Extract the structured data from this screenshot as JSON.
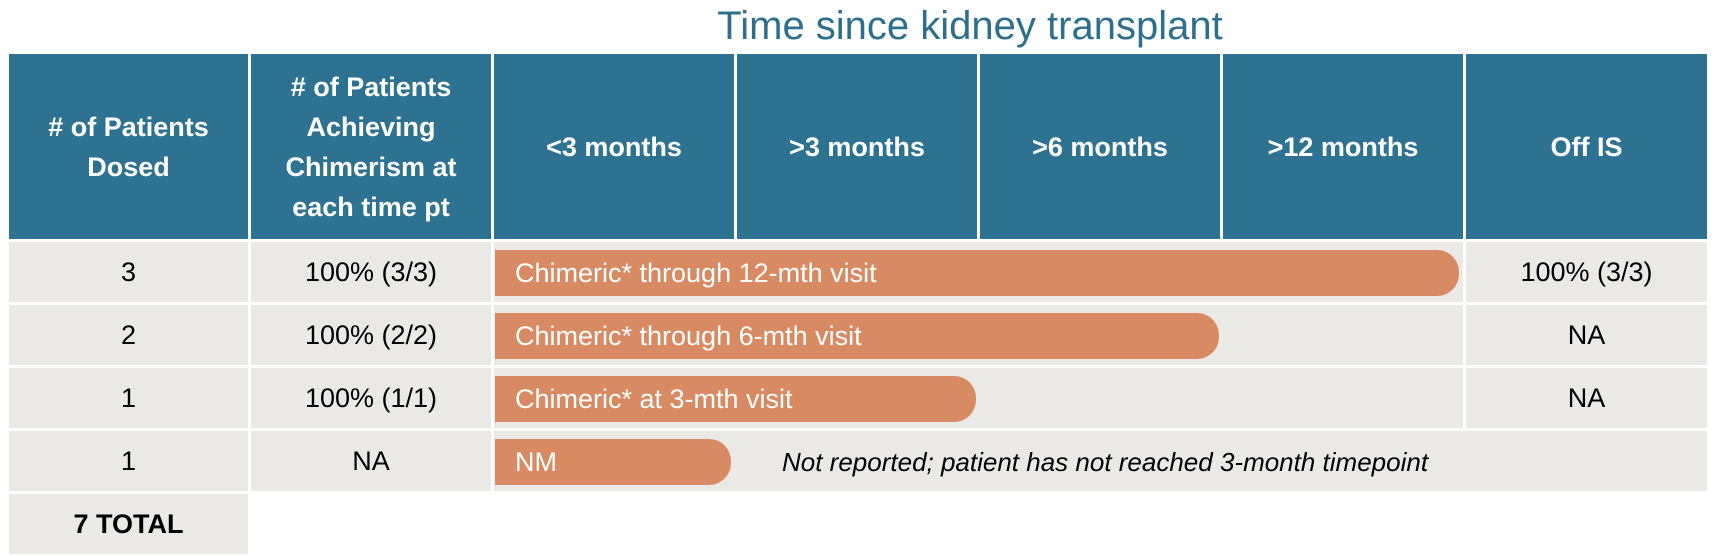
{
  "title": "Time since kidney transplant",
  "headers": {
    "dosed": "# of Patients Dosed",
    "achieving": "# of Patients Achieving Chimerism at each time pt",
    "lt3": "<3 months",
    "gt3": ">3 months",
    "gt6": ">6 months",
    "gt12": ">12 months",
    "off_is": "Off IS"
  },
  "rows": [
    {
      "dosed": "3",
      "achieving": "100% (3/3)",
      "bar": "Chimeric* through 12-mth visit",
      "off_is": "100% (3/3)"
    },
    {
      "dosed": "2",
      "achieving": "100% (2/2)",
      "bar": "Chimeric* through 6-mth visit",
      "off_is": "NA"
    },
    {
      "dosed": "1",
      "achieving": "100% (1/1)",
      "bar": "Chimeric* at 3-mth visit",
      "off_is": "NA"
    },
    {
      "dosed": "1",
      "achieving": "NA",
      "bar": "NM",
      "note": "Not reported; patient has not reached 3-month timepoint"
    }
  ],
  "total": "7 TOTAL",
  "colors": {
    "header": "#2e7291",
    "body": "#ebe9e6",
    "bar": "#d88a62",
    "title": "#2e6f8e"
  }
}
